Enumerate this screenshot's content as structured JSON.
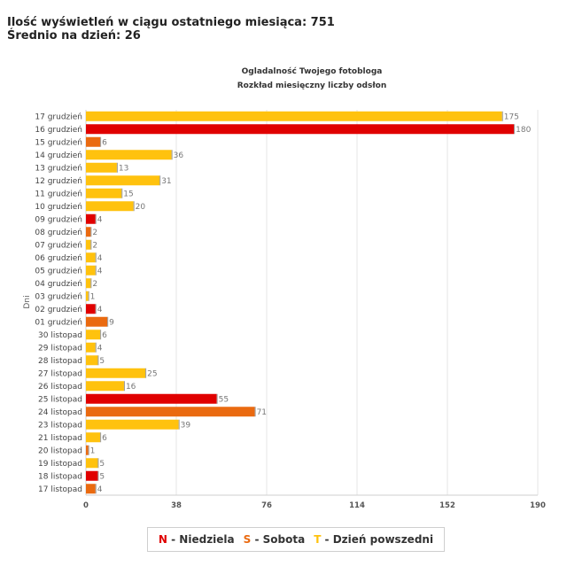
{
  "header": {
    "views_label": "Ilość wyświetleń w ciągu ostatniego miesiąca: 751",
    "avg_label": "Średnio na dzień: 26"
  },
  "colors": {
    "sunday": "#e00000",
    "saturday": "#ea6a10",
    "weekday": "#ffc20e",
    "grid": "#e6e6e6"
  },
  "chart_data": {
    "type": "bar",
    "orientation": "horizontal",
    "title": "Ogladalność Twojego fotobloga",
    "subtitle": "Rozkład miesięczny liczby odsłon",
    "ylabel": "Dni",
    "xlabel": "",
    "xlim": [
      0,
      190
    ],
    "xticks": [
      0,
      38,
      76,
      114,
      152,
      190
    ],
    "grid": true,
    "categories": [
      "17 grudzień",
      "16 grudzień",
      "15 grudzień",
      "14 grudzień",
      "13 grudzień",
      "12 grudzień",
      "11 grudzień",
      "10 grudzień",
      "09 grudzień",
      "08 grudzień",
      "07 grudzień",
      "06 grudzień",
      "05 grudzień",
      "04 grudzień",
      "03 grudzień",
      "02 grudzień",
      "01 grudzień",
      "30 listopad",
      "29 listopad",
      "28 listopad",
      "27 listopad",
      "26 listopad",
      "25 listopad",
      "24 listopad",
      "23 listopad",
      "21 listopad",
      "20 listopad",
      "19 listopad",
      "18 listopad",
      "17 listopad"
    ],
    "values": [
      175,
      180,
      6,
      36,
      13,
      31,
      15,
      20,
      4,
      2,
      2,
      4,
      4,
      2,
      1,
      4,
      9,
      6,
      4,
      5,
      25,
      16,
      55,
      71,
      39,
      6,
      1,
      5,
      5,
      4
    ],
    "day_types": [
      "T",
      "N",
      "S",
      "T",
      "T",
      "T",
      "T",
      "T",
      "N",
      "S",
      "T",
      "T",
      "T",
      "T",
      "T",
      "N",
      "S",
      "T",
      "T",
      "T",
      "T",
      "T",
      "N",
      "S",
      "T",
      "T",
      "S",
      "T",
      "N",
      "S"
    ]
  },
  "legend": {
    "items": [
      {
        "key": "N",
        "label": " - Niedziela",
        "type": "sunday"
      },
      {
        "key": "S",
        "label": " - Sobota",
        "type": "saturday"
      },
      {
        "key": "T",
        "label": " - Dzień powszedni",
        "type": "weekday"
      }
    ]
  }
}
